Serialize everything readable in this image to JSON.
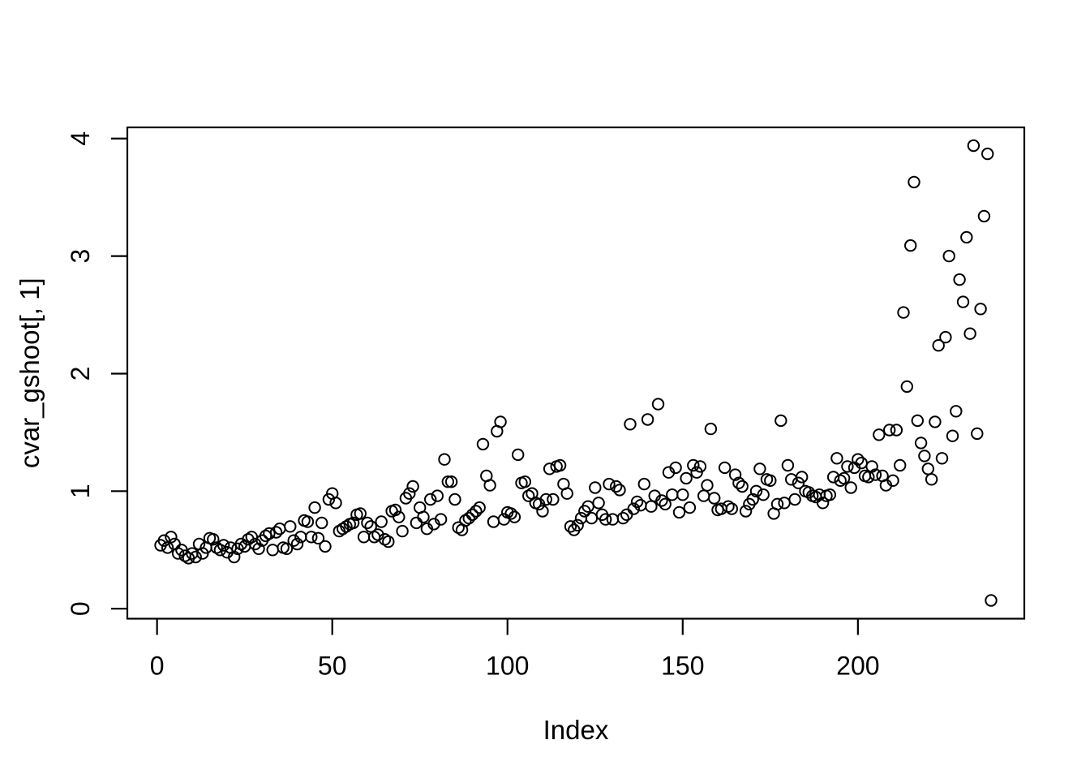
{
  "figure": {
    "background": "#ffffff",
    "foreground": "#000000"
  },
  "chart_data": {
    "type": "scatter",
    "title": "",
    "xlabel": "Index",
    "ylabel": "cvar_gshoot[, 1]",
    "x_ticks": [
      0,
      50,
      100,
      150,
      200
    ],
    "y_ticks": [
      0,
      1,
      2,
      3,
      4
    ],
    "xlim": [
      -8.48,
      247.48
    ],
    "ylim": [
      -0.085,
      4.095
    ],
    "grid": false,
    "legend": null,
    "marker": "open-circle",
    "marker_color": "#000000",
    "n_points": 238,
    "x_start_index": 1,
    "x_description": "observation index 1..n, one point per index",
    "values": [
      0.54,
      0.58,
      0.52,
      0.61,
      0.55,
      0.47,
      0.5,
      0.45,
      0.43,
      0.47,
      0.44,
      0.55,
      0.47,
      0.52,
      0.6,
      0.59,
      0.52,
      0.5,
      0.54,
      0.48,
      0.52,
      0.44,
      0.51,
      0.55,
      0.53,
      0.59,
      0.61,
      0.55,
      0.51,
      0.58,
      0.62,
      0.64,
      0.5,
      0.65,
      0.68,
      0.52,
      0.51,
      0.7,
      0.58,
      0.55,
      0.61,
      0.75,
      0.74,
      0.61,
      0.86,
      0.6,
      0.73,
      0.53,
      0.93,
      0.98,
      0.9,
      0.66,
      0.68,
      0.7,
      0.72,
      0.73,
      0.8,
      0.81,
      0.61,
      0.73,
      0.7,
      0.61,
      0.63,
      0.74,
      0.59,
      0.57,
      0.83,
      0.84,
      0.78,
      0.66,
      0.94,
      0.98,
      1.04,
      0.73,
      0.86,
      0.78,
      0.68,
      0.93,
      0.72,
      0.96,
      0.76,
      1.27,
      1.08,
      1.08,
      0.93,
      0.69,
      0.67,
      0.75,
      0.77,
      0.8,
      0.83,
      0.86,
      1.4,
      1.13,
      1.05,
      0.74,
      1.51,
      1.59,
      0.76,
      0.82,
      0.81,
      0.78,
      1.31,
      1.07,
      1.08,
      0.96,
      0.98,
      0.9,
      0.89,
      0.83,
      0.93,
      1.19,
      0.93,
      1.21,
      1.22,
      1.06,
      0.98,
      0.7,
      0.67,
      0.71,
      0.77,
      0.83,
      0.87,
      0.77,
      1.03,
      0.9,
      0.8,
      0.76,
      1.06,
      0.76,
      1.04,
      1.01,
      0.77,
      0.8,
      1.57,
      0.85,
      0.91,
      0.88,
      1.06,
      1.61,
      0.87,
      0.96,
      1.74,
      0.92,
      0.89,
      1.16,
      0.97,
      1.2,
      0.82,
      0.97,
      1.11,
      0.86,
      1.22,
      1.16,
      1.21,
      0.96,
      1.05,
      1.53,
      0.94,
      0.84,
      0.85,
      1.2,
      0.87,
      0.85,
      1.14,
      1.07,
      1.04,
      0.83,
      0.89,
      0.93,
      1.0,
      1.19,
      0.97,
      1.1,
      1.09,
      0.81,
      0.89,
      1.6,
      0.9,
      1.22,
      1.1,
      0.93,
      1.07,
      1.12,
      1.0,
      0.99,
      0.96,
      0.95,
      0.97,
      0.9,
      0.96,
      0.97,
      1.12,
      1.28,
      1.09,
      1.11,
      1.21,
      1.03,
      1.2,
      1.27,
      1.24,
      1.13,
      1.12,
      1.21,
      1.14,
      1.48,
      1.13,
      1.05,
      1.52,
      1.09,
      1.52,
      1.22,
      2.52,
      1.89,
      3.09,
      3.63,
      1.6,
      1.41,
      1.3,
      1.19,
      1.1,
      1.59,
      2.24,
      1.28,
      2.31,
      3.0,
      1.47,
      1.68,
      2.8,
      2.61,
      3.16,
      2.34,
      3.94,
      1.49,
      2.55,
      3.34,
      3.87,
      0.07
    ]
  }
}
